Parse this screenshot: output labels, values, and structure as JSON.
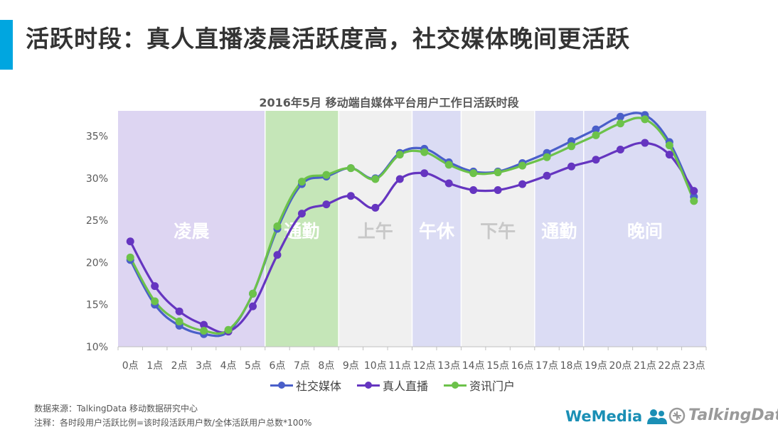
{
  "header": {
    "title": "活跃时段：真人直播凌晨活跃度高，社交媒体晚间更活跃",
    "accent_color": "#00a6e0"
  },
  "chart_data": {
    "type": "line",
    "title": "2016年5月 移动端自媒体平台用户工作日活跃时段",
    "categories": [
      "0点",
      "1点",
      "2点",
      "3点",
      "4点",
      "5点",
      "6点",
      "7点",
      "8点",
      "9点",
      "10点",
      "11点",
      "12点",
      "13点",
      "14点",
      "15点",
      "16点",
      "17点",
      "18点",
      "19点",
      "20点",
      "21点",
      "22点",
      "23点"
    ],
    "ylim": [
      10,
      38
    ],
    "yticks": [
      10,
      15,
      20,
      25,
      30,
      35
    ],
    "ytick_labels": [
      "10%",
      "15%",
      "20%",
      "25%",
      "30%",
      "35%"
    ],
    "series": [
      {
        "name": "社交媒体",
        "color": "#4a5fc9",
        "values": [
          20.3,
          15.0,
          12.5,
          11.5,
          11.8,
          16.3,
          24.0,
          29.3,
          30.2,
          31.2,
          30.0,
          33.0,
          33.5,
          31.9,
          30.8,
          30.8,
          31.8,
          33.0,
          34.4,
          35.8,
          37.3,
          37.5,
          34.3,
          27.8
        ]
      },
      {
        "name": "真人直播",
        "color": "#6535c0",
        "values": [
          22.5,
          17.2,
          14.2,
          12.6,
          11.8,
          14.8,
          20.9,
          25.8,
          26.9,
          27.9,
          26.5,
          29.9,
          30.6,
          29.4,
          28.6,
          28.6,
          29.3,
          30.3,
          31.4,
          32.2,
          33.4,
          34.2,
          32.8,
          28.5
        ]
      },
      {
        "name": "资讯门户",
        "color": "#6cc24a",
        "values": [
          20.6,
          15.4,
          13.0,
          11.9,
          12.0,
          16.3,
          24.3,
          29.6,
          30.4,
          31.2,
          29.9,
          32.8,
          33.1,
          31.6,
          30.6,
          30.7,
          31.5,
          32.5,
          33.8,
          35.1,
          36.5,
          37.0,
          33.9,
          27.3
        ]
      }
    ],
    "grid": false,
    "legend_position": "bottom",
    "periods": [
      {
        "label": "凌晨",
        "start": 0,
        "end": 6,
        "color": "#ddd5f2",
        "label_color": "#ffffff"
      },
      {
        "label": "通勤",
        "start": 6,
        "end": 9,
        "color": "#c5e6b8",
        "label_color": "#ffffff"
      },
      {
        "label": "上午",
        "start": 9,
        "end": 12,
        "color": "#f0f0f0",
        "label_color": "#c8c8c8"
      },
      {
        "label": "午休",
        "start": 12,
        "end": 14,
        "color": "#dbdcf4",
        "label_color": "#ffffff"
      },
      {
        "label": "下午",
        "start": 14,
        "end": 17,
        "color": "#f0f0f0",
        "label_color": "#c8c8c8"
      },
      {
        "label": "通勤",
        "start": 17,
        "end": 19,
        "color": "#dbdcf4",
        "label_color": "#ffffff"
      },
      {
        "label": "晚间",
        "start": 19,
        "end": 24,
        "color": "#dbdcf4",
        "label_color": "#ffffff"
      }
    ]
  },
  "footer": {
    "source": "数据来源：TalkingData 移动数据研究中心",
    "note": "注释：各时段用户活跃比例=该时段活跃用户数/全体活跃用户总数*100%",
    "logo_wemedia": "WeMedia",
    "logo_talkingdata": "TalkingData"
  }
}
